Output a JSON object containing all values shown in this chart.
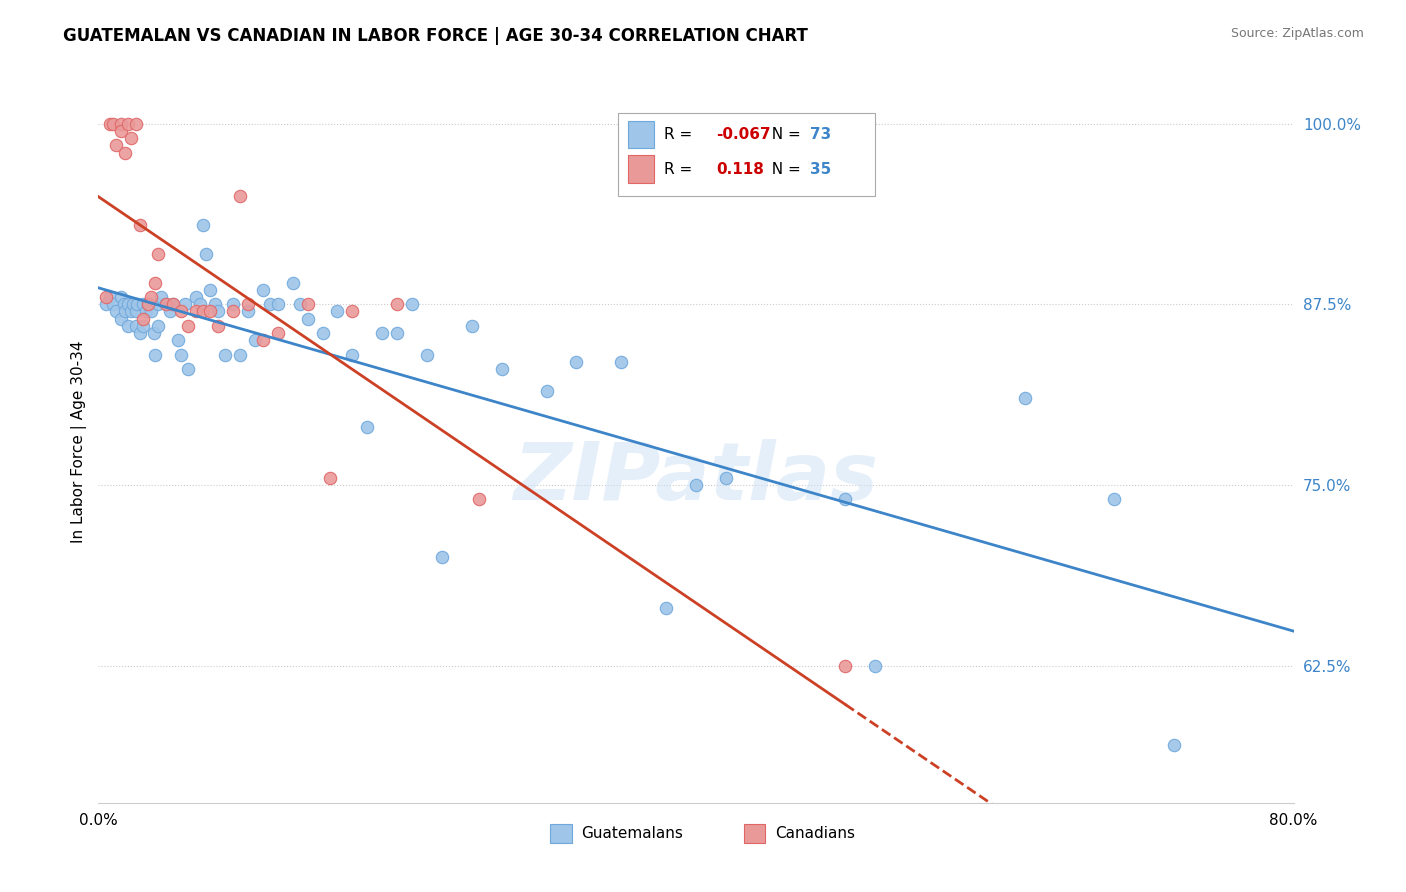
{
  "title": "GUATEMALAN VS CANADIAN IN LABOR FORCE | AGE 30-34 CORRELATION CHART",
  "source": "Source: ZipAtlas.com",
  "ylabel": "In Labor Force | Age 30-34",
  "xlim": [
    0.0,
    0.8
  ],
  "ylim": [
    0.53,
    1.03
  ],
  "yticks": [
    0.625,
    0.75,
    0.875,
    1.0
  ],
  "ytick_labels": [
    "62.5%",
    "75.0%",
    "87.5%",
    "100.0%"
  ],
  "xticks": [
    0.0,
    0.2,
    0.4,
    0.6,
    0.8
  ],
  "xtick_labels": [
    "0.0%",
    "",
    "",
    "",
    "80.0%"
  ],
  "legend_r_blue": "-0.067",
  "legend_n_blue": "73",
  "legend_r_pink": "0.118",
  "legend_n_pink": "35",
  "blue_scatter_color": "#9fc5e8",
  "blue_edge_color": "#6fa8dc",
  "pink_scatter_color": "#ea9999",
  "pink_edge_color": "#e06666",
  "blue_line_color": "#3d85c8",
  "pink_line_color": "#cc4125",
  "watermark": "ZIPatlas",
  "guatemalan_x": [
    0.005,
    0.008,
    0.01,
    0.012,
    0.015,
    0.015,
    0.017,
    0.018,
    0.02,
    0.02,
    0.022,
    0.023,
    0.025,
    0.025,
    0.026,
    0.028,
    0.03,
    0.03,
    0.032,
    0.033,
    0.035,
    0.037,
    0.038,
    0.04,
    0.04,
    0.042,
    0.045,
    0.048,
    0.05,
    0.053,
    0.055,
    0.058,
    0.06,
    0.065,
    0.068,
    0.07,
    0.072,
    0.075,
    0.078,
    0.08,
    0.085,
    0.09,
    0.095,
    0.1,
    0.105,
    0.11,
    0.115,
    0.12,
    0.13,
    0.135,
    0.14,
    0.15,
    0.16,
    0.17,
    0.18,
    0.19,
    0.2,
    0.21,
    0.22,
    0.23,
    0.25,
    0.27,
    0.3,
    0.32,
    0.35,
    0.38,
    0.4,
    0.42,
    0.5,
    0.52,
    0.62,
    0.68,
    0.72
  ],
  "guatemalan_y": [
    0.875,
    0.88,
    0.875,
    0.87,
    0.88,
    0.865,
    0.875,
    0.87,
    0.875,
    0.86,
    0.87,
    0.875,
    0.87,
    0.86,
    0.875,
    0.855,
    0.875,
    0.86,
    0.87,
    0.875,
    0.87,
    0.855,
    0.84,
    0.875,
    0.86,
    0.88,
    0.875,
    0.87,
    0.875,
    0.85,
    0.84,
    0.875,
    0.83,
    0.88,
    0.875,
    0.93,
    0.91,
    0.885,
    0.875,
    0.87,
    0.84,
    0.875,
    0.84,
    0.87,
    0.85,
    0.885,
    0.875,
    0.875,
    0.89,
    0.875,
    0.865,
    0.855,
    0.87,
    0.84,
    0.79,
    0.855,
    0.855,
    0.875,
    0.84,
    0.7,
    0.86,
    0.83,
    0.815,
    0.835,
    0.835,
    0.665,
    0.75,
    0.755,
    0.74,
    0.625,
    0.81,
    0.74,
    0.57
  ],
  "canadian_x": [
    0.005,
    0.008,
    0.01,
    0.012,
    0.015,
    0.015,
    0.018,
    0.02,
    0.022,
    0.025,
    0.028,
    0.03,
    0.033,
    0.035,
    0.038,
    0.04,
    0.045,
    0.05,
    0.055,
    0.06,
    0.065,
    0.07,
    0.075,
    0.08,
    0.09,
    0.095,
    0.1,
    0.11,
    0.12,
    0.14,
    0.155,
    0.17,
    0.2,
    0.255,
    0.5
  ],
  "canadian_y": [
    0.88,
    1.0,
    1.0,
    0.985,
    1.0,
    0.995,
    0.98,
    1.0,
    0.99,
    1.0,
    0.93,
    0.865,
    0.875,
    0.88,
    0.89,
    0.91,
    0.875,
    0.875,
    0.87,
    0.86,
    0.87,
    0.87,
    0.87,
    0.86,
    0.87,
    0.95,
    0.875,
    0.85,
    0.855,
    0.875,
    0.755,
    0.87,
    0.875,
    0.74,
    0.625
  ]
}
